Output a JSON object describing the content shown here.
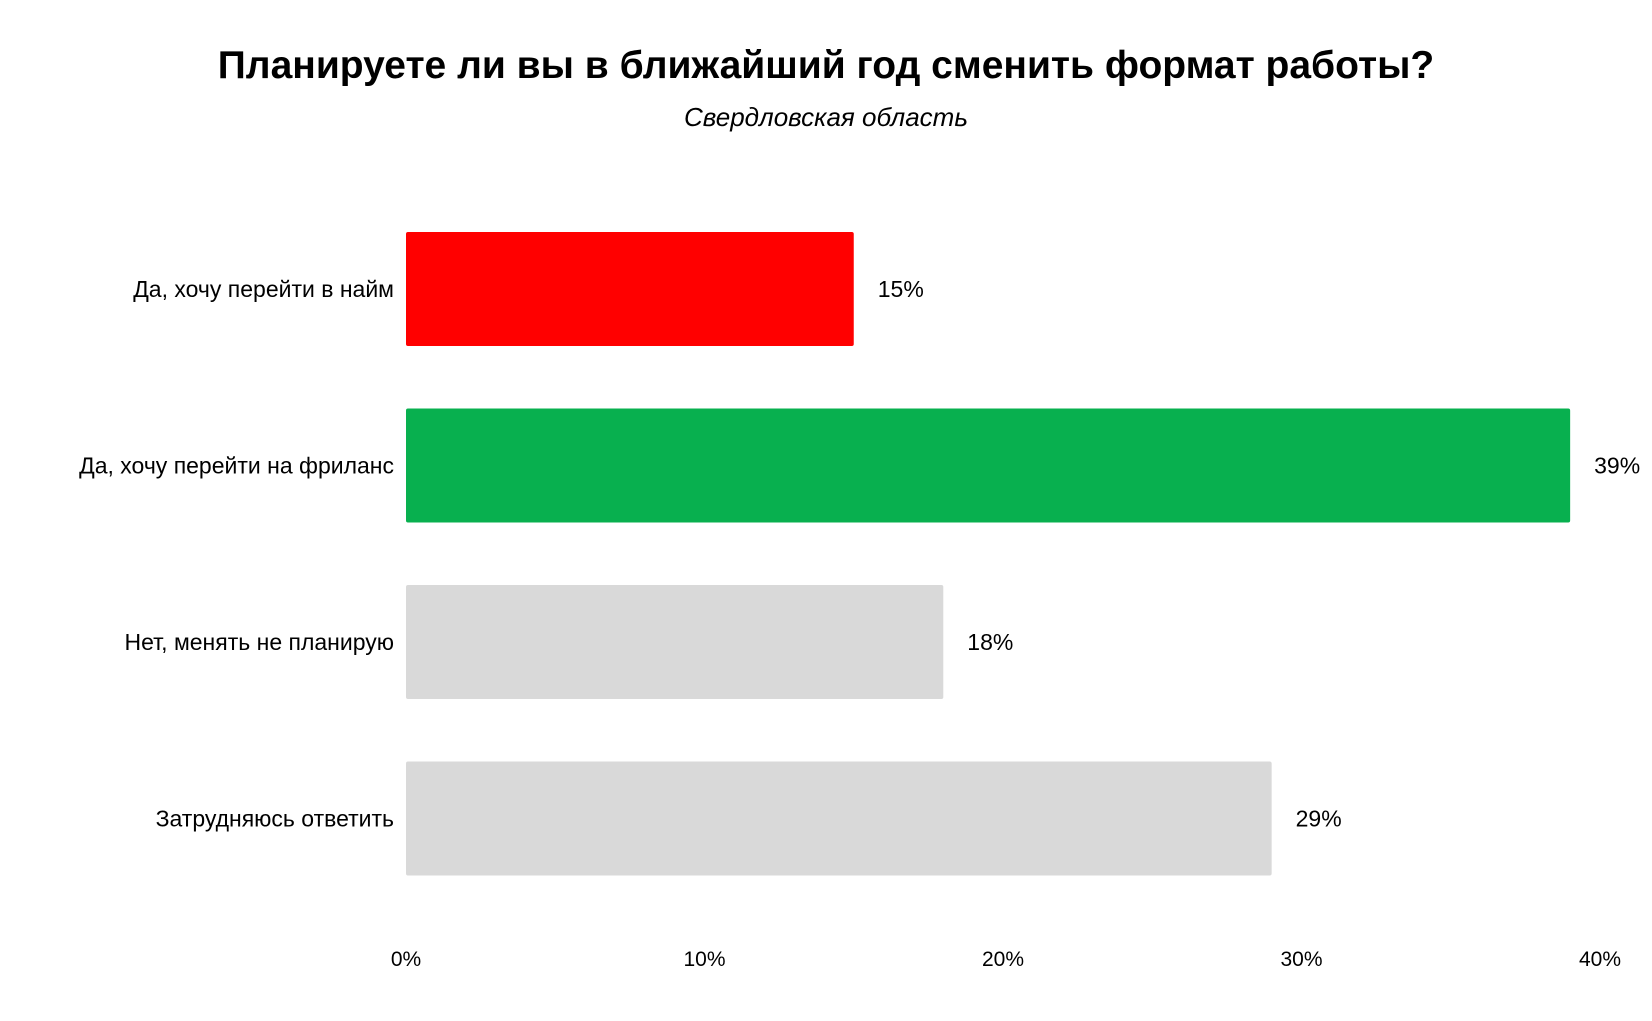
{
  "chart_data": {
    "type": "bar",
    "orientation": "horizontal",
    "title": "Планируете ли вы в ближайший год сменить формат работы?",
    "subtitle": "Свердловская область",
    "categories": [
      "Да, хочу перейти в найм",
      "Да, хочу перейти на фриланс",
      "Нет, менять не планирую",
      "Затрудняюсь ответить"
    ],
    "values": [
      15,
      39,
      18,
      29
    ],
    "value_labels": [
      "15%",
      "39%",
      "18%",
      "29%"
    ],
    "bar_colors": [
      "#ff0000",
      "#08b04f",
      "#d9d9d9",
      "#d9d9d9"
    ],
    "xlim": [
      0,
      40
    ],
    "x_ticks": [
      0,
      10,
      20,
      30,
      40
    ],
    "x_tick_labels": [
      "0%",
      "10%",
      "20%",
      "30%",
      "40%"
    ],
    "xlabel": "",
    "ylabel": "",
    "grid": false,
    "legend": "none"
  }
}
